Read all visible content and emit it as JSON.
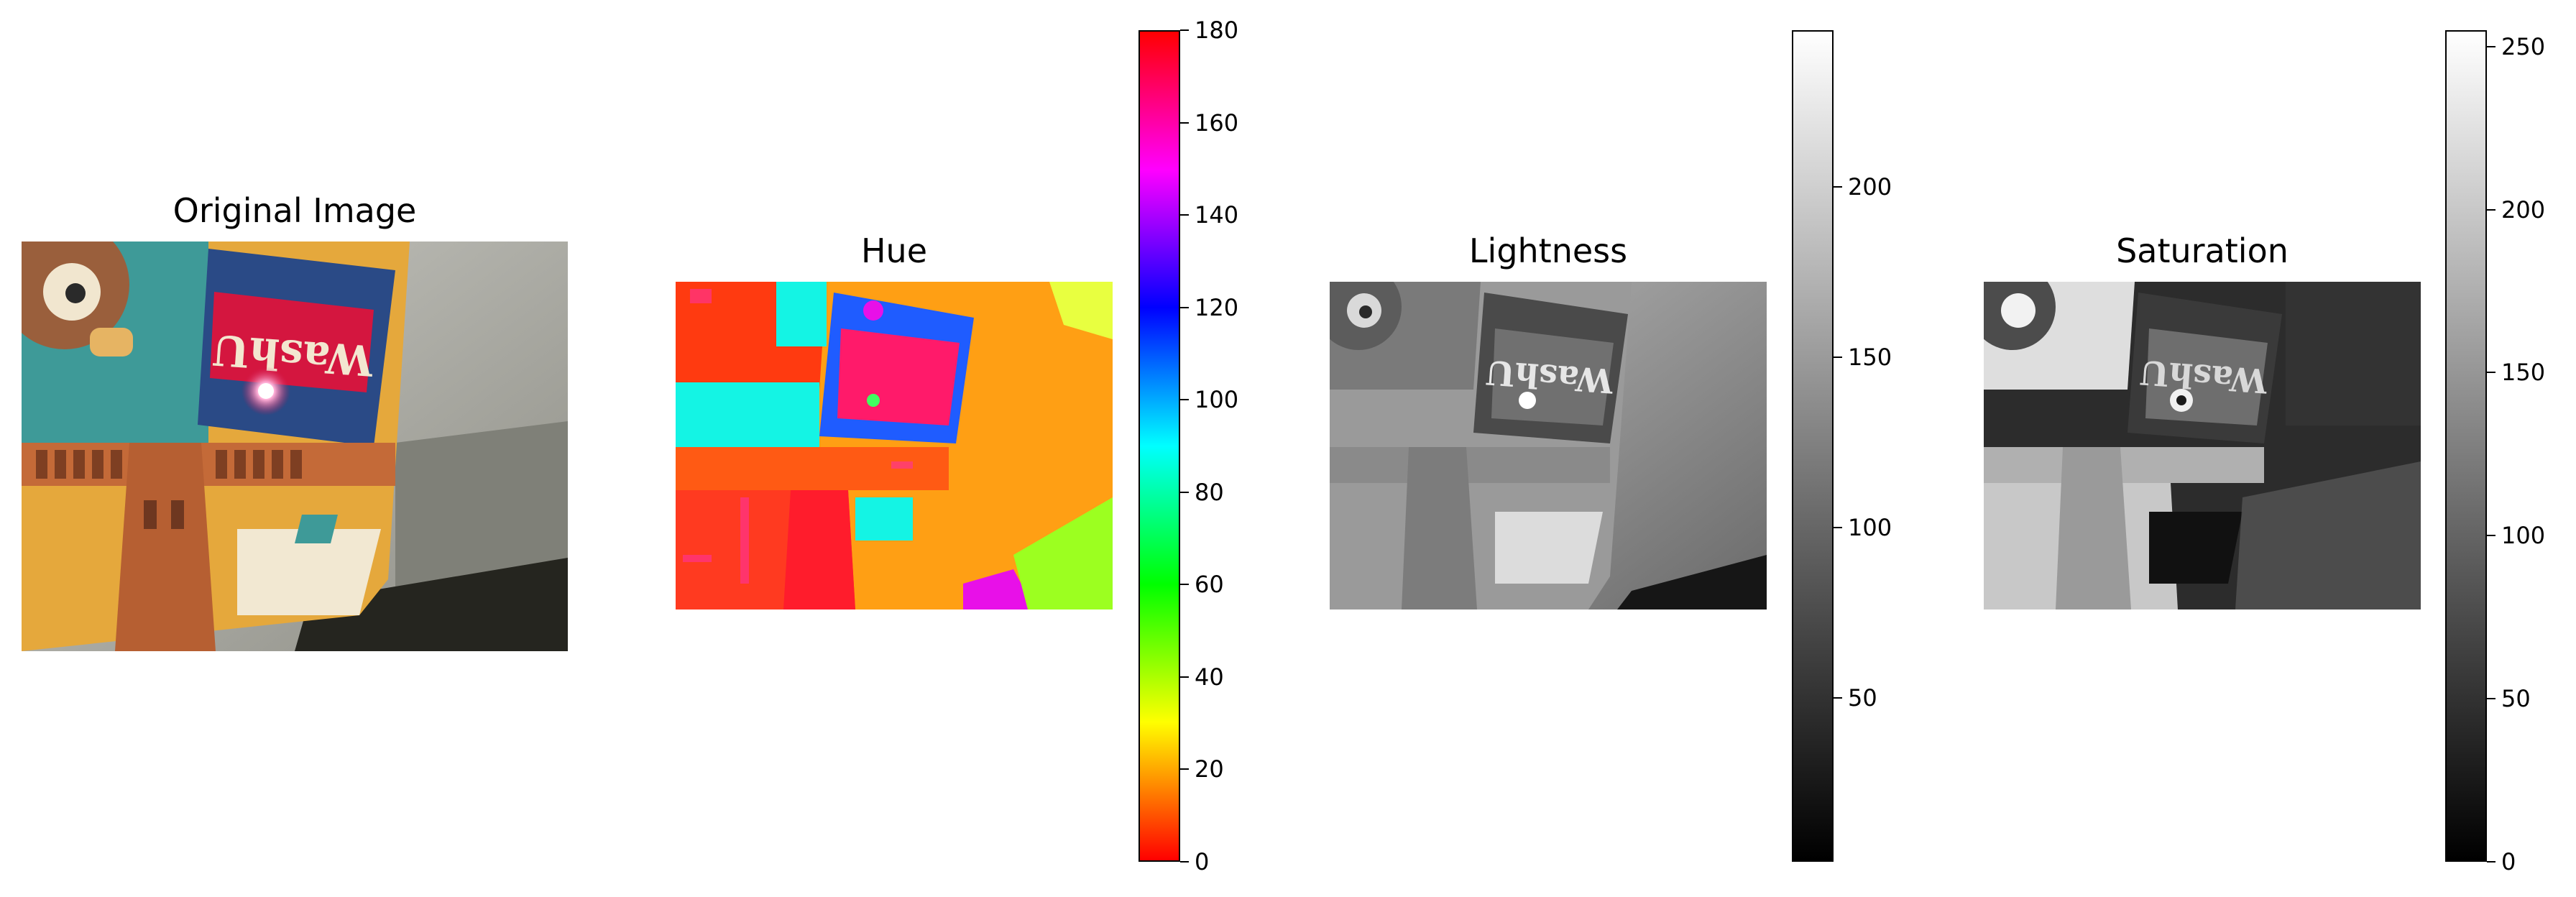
{
  "panels": {
    "original": {
      "title": "Original Image"
    },
    "hue": {
      "title": "Hue"
    },
    "lightness": {
      "title": "Lightness"
    },
    "saturation": {
      "title": "Saturation"
    }
  },
  "photo_text": "WashU",
  "chart_data": [
    {
      "type": "image",
      "title": "Original Image",
      "colormap": "rgb"
    },
    {
      "type": "heatmap",
      "title": "Hue",
      "colormap": "hsv",
      "colorbar": {
        "min": 0,
        "max": 180,
        "ticks": [
          0,
          20,
          40,
          60,
          80,
          100,
          120,
          140,
          160,
          180
        ]
      }
    },
    {
      "type": "heatmap",
      "title": "Lightness",
      "colormap": "gray",
      "colorbar": {
        "min": 2,
        "max": 246,
        "ticks": [
          50,
          100,
          150,
          200
        ]
      }
    },
    {
      "type": "heatmap",
      "title": "Saturation",
      "colormap": "gray",
      "colorbar": {
        "min": 0,
        "max": 255,
        "ticks": [
          0,
          50,
          100,
          150,
          200,
          250
        ]
      }
    }
  ]
}
